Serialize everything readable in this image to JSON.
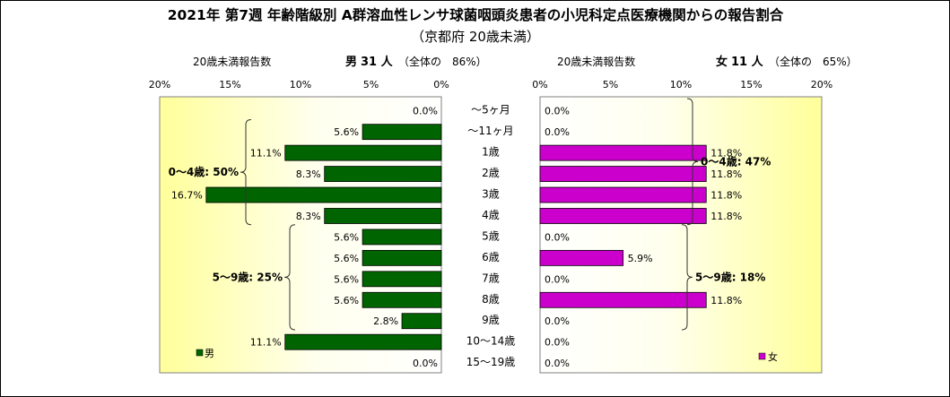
{
  "title": "2021年 第7週 年齢階級別 A群溶血性レンサ球菌咽頭炎患者の小児科定点医療機関からの報告割合",
  "subtitle": "（京都府 20歳未満）",
  "male_header": {
    "label": "20歳未満報告数",
    "sex": "男",
    "count": "31 人",
    "share": "（全体の　86%）"
  },
  "female_header": {
    "label": "20歳未満報告数",
    "sex": "女",
    "count": "11 人",
    "share": "（全体の　65%）"
  },
  "chart_data": {
    "type": "bar",
    "orientation": "horizontal",
    "categories": [
      "～5ヶ月",
      "～11ヶ月",
      "1歳",
      "2歳",
      "3歳",
      "4歳",
      "5歳",
      "6歳",
      "7歳",
      "8歳",
      "9歳",
      "10～14歳",
      "15～19歳"
    ],
    "series": [
      {
        "name": "男",
        "color": "#006400",
        "values": [
          0.0,
          5.6,
          11.1,
          8.3,
          16.7,
          8.3,
          5.6,
          5.6,
          5.6,
          5.6,
          2.8,
          11.1,
          0.0
        ],
        "labels": [
          "0.0%",
          "5.6%",
          "11.1%",
          "8.3%",
          "16.7%",
          "8.3%",
          "5.6%",
          "5.6%",
          "5.6%",
          "5.6%",
          "2.8%",
          "11.1%",
          "0.0%"
        ]
      },
      {
        "name": "女",
        "color": "#cc00cc",
        "values": [
          0.0,
          0.0,
          11.8,
          11.8,
          11.8,
          11.8,
          0.0,
          5.9,
          0.0,
          11.8,
          0.0,
          0.0,
          0.0
        ],
        "labels": [
          "0.0%",
          "0.0%",
          "11.8%",
          "11.8%",
          "11.8%",
          "11.8%",
          "0.0%",
          "5.9%",
          "0.0%",
          "11.8%",
          "0.0%",
          "0.0%",
          "0.0%"
        ]
      }
    ],
    "xlim": [
      0,
      20
    ],
    "x_ticks": [
      "0%",
      "5%",
      "10%",
      "15%",
      "20%"
    ],
    "male_groups": [
      {
        "label": "0～4歳: 50%",
        "from": 1,
        "to": 5
      },
      {
        "label": "5～9歳: 25%",
        "from": 6,
        "to": 10
      }
    ],
    "female_groups": [
      {
        "label": "0～4歳: 47%",
        "from": 0,
        "to": 5
      },
      {
        "label": "5～9歳: 18%",
        "from": 6,
        "to": 10
      }
    ]
  }
}
